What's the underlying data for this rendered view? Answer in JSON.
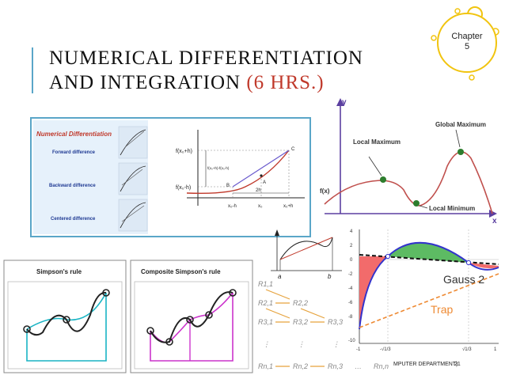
{
  "slide": {
    "title_line1": "NUMERICAL DIFFERENTIATION",
    "title_line2_main": "AND INTEGRATION",
    "title_line2_highlight": "(6 HRS.)",
    "chapter_label": "Chapter",
    "chapter_number": "5",
    "footer_text": "MPUTER DEPARTMENT)",
    "page_number": "21"
  },
  "numerical_differentiation": {
    "heading": "Numerical Differentiation",
    "methods": [
      "Forward difference",
      "Backward difference",
      "Centered difference"
    ],
    "labels": {
      "f_x0_h": "f(x₀+h)",
      "f_x0_mh": "f(x₀-h)",
      "fraction": "f(x₀+h)-f(x₀-h)",
      "two_h": "2h",
      "point_b": "B",
      "point_a": "A",
      "point_c": "C",
      "x0_mh": "x₀-h",
      "x0": "x₀",
      "x0_h": "x₀+h"
    }
  },
  "extrema": {
    "y_label": "y",
    "x_label": "x",
    "fx_label": "f(x)",
    "local_maximum": "Local Maximum",
    "global_maximum": "Global Maximum",
    "local_minimum": "Local Minimum"
  },
  "integral_sketch": {
    "a_label": "a",
    "b_label": "b"
  },
  "simpson": {
    "title": "Simpson's rule",
    "composite_title": "Composite Simpson's rule"
  },
  "romberg": {
    "rows": [
      [
        "R1,1"
      ],
      [
        "R2,1",
        "R2,2"
      ],
      [
        "R3,1",
        "R3,2",
        "R3,3"
      ],
      [
        "⋮",
        "⋮",
        "⋮"
      ],
      [
        "Rn,1",
        "Rn,2",
        "Rn,3",
        "…",
        "Rn,n"
      ]
    ]
  },
  "gauss": {
    "label_gauss": "Gauss 2",
    "label_trap": "Trap",
    "y_ticks": [
      "4",
      "2",
      "0",
      "-2",
      "-4",
      "-6",
      "-8",
      "-10"
    ],
    "x_ticks": [
      "-1",
      "-√1/3",
      "√1/3",
      "1"
    ],
    "colors": {
      "curve": "#3333cc",
      "error_red": "#f26b6b",
      "error_green": "#5dbb63",
      "trap": "#ee8a33"
    }
  }
}
